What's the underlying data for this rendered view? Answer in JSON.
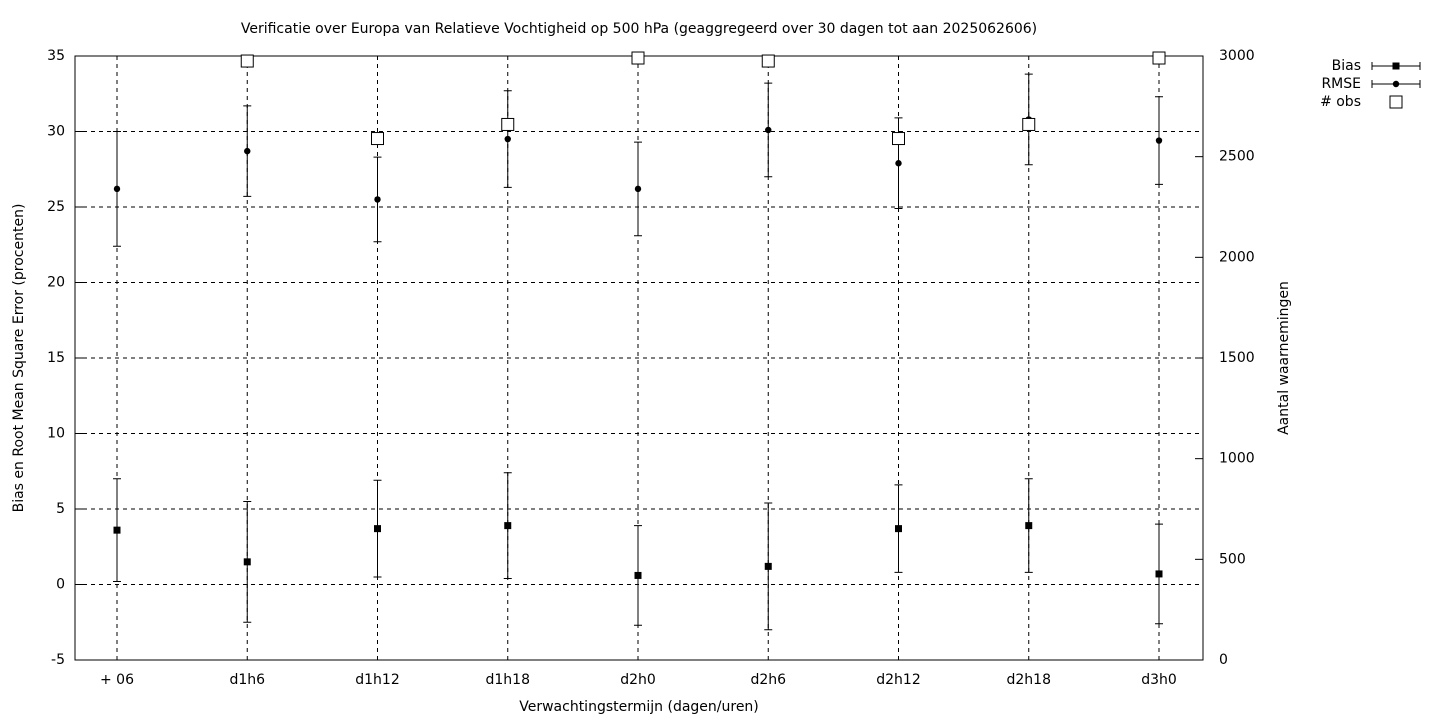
{
  "chart_data": {
    "type": "errorbar",
    "title": "Verificatie over Europa van Relatieve Vochtigheid op 500 hPa (geaggregeerd over 30 dagen tot aan 2025062606)",
    "x_label": "Verwachtingstermijn (dagen/uren)",
    "y_label": "Bias en Root Mean Square Error (procenten)",
    "y2_label": "Aantal waarnemingen",
    "categories": [
      "+ 06",
      "d1h6",
      "d1h12",
      "d1h18",
      "d2h0",
      "d2h6",
      "d2h12",
      "d2h18",
      "d3h0"
    ],
    "series": [
      {
        "name": "Bias",
        "color": "#000000",
        "marker": "filled-square",
        "values": [
          3.6,
          1.5,
          3.7,
          3.9,
          0.6,
          1.2,
          3.7,
          3.9,
          0.7
        ],
        "errors": [
          3.4,
          4.0,
          3.2,
          3.5,
          3.3,
          4.2,
          2.9,
          3.1,
          3.3
        ]
      },
      {
        "name": "RMSE",
        "color": "#000000",
        "marker": "filled-circle",
        "values": [
          26.2,
          28.7,
          25.5,
          29.5,
          26.2,
          30.1,
          27.9,
          30.8,
          29.4
        ],
        "errors": [
          3.8,
          3.0,
          2.8,
          3.2,
          3.1,
          3.1,
          3.0,
          3.0,
          2.9
        ]
      },
      {
        "name": "# obs",
        "color": "#000000",
        "marker": "open-square",
        "axis": "y2",
        "values": [
          null,
          2975,
          2590,
          2660,
          2990,
          2975,
          2590,
          2660,
          2990
        ]
      }
    ],
    "ylim": [
      -5,
      35
    ],
    "yticks": [
      -5,
      0,
      5,
      10,
      15,
      20,
      25,
      30,
      35
    ],
    "y2lim": [
      0,
      3000
    ],
    "y2ticks": [
      0,
      500,
      1000,
      1500,
      2000,
      2500,
      3000
    ],
    "grid": true,
    "legend": "top-right"
  }
}
